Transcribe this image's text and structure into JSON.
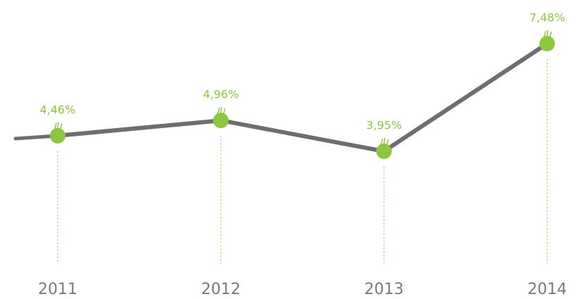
{
  "chart_data": {
    "type": "line",
    "categories": [
      "2011",
      "2012",
      "2013",
      "2014"
    ],
    "values": [
      4.46,
      4.96,
      3.95,
      7.48
    ],
    "value_labels": [
      "4,46%",
      "4,96%",
      "3,95%",
      "7,48%"
    ],
    "line_color": "#6d6e71",
    "marker_color": "#8dc63f"
  }
}
